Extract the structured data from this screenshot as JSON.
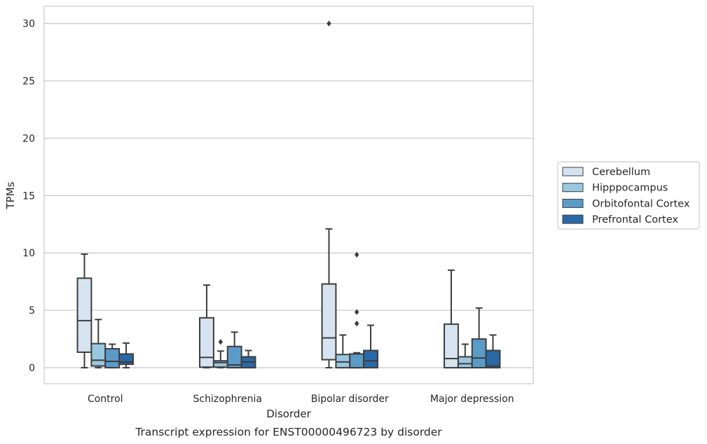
{
  "chart_data": {
    "type": "box",
    "title": "",
    "caption": "Transcript expression for ENST00000496723 by disorder",
    "xlabel": "Disorder",
    "ylabel": "TPMs",
    "ylim": [
      -1.4,
      31.5
    ],
    "yticks": [
      0,
      5,
      10,
      15,
      20,
      25,
      30
    ],
    "grid": "horizontal",
    "legend_position": "right-center",
    "categories": [
      "Control",
      "Schizophrenia",
      "Bipolar disorder",
      "Major depression"
    ],
    "series": [
      {
        "name": "Cerebellum",
        "color": "#d6e3f1",
        "boxes": [
          {
            "whisker_low": 0.0,
            "q1": 1.35,
            "median": 4.1,
            "q3": 7.8,
            "whisker_high": 9.9,
            "outliers": []
          },
          {
            "whisker_low": 0.0,
            "q1": 0.05,
            "median": 0.9,
            "q3": 4.35,
            "whisker_high": 7.2,
            "outliers": []
          },
          {
            "whisker_low": 0.0,
            "q1": 0.7,
            "median": 2.6,
            "q3": 7.3,
            "whisker_high": 12.1,
            "outliers": [
              30.0
            ]
          },
          {
            "whisker_low": 0.0,
            "q1": 0.0,
            "median": 0.8,
            "q3": 3.8,
            "whisker_high": 8.5,
            "outliers": []
          }
        ]
      },
      {
        "name": "Hipppocampus",
        "color": "#9ac7e0",
        "boxes": [
          {
            "whisker_low": 0.0,
            "q1": 0.15,
            "median": 0.65,
            "q3": 2.1,
            "whisker_high": 4.2,
            "outliers": []
          },
          {
            "whisker_low": 0.0,
            "q1": 0.05,
            "median": 0.45,
            "q3": 0.6,
            "whisker_high": 1.45,
            "outliers": [
              2.25
            ]
          },
          {
            "whisker_low": 0.0,
            "q1": 0.0,
            "median": 0.5,
            "q3": 1.15,
            "whisker_high": 2.85,
            "outliers": []
          },
          {
            "whisker_low": 0.0,
            "q1": 0.0,
            "median": 0.35,
            "q3": 0.95,
            "whisker_high": 2.05,
            "outliers": []
          }
        ]
      },
      {
        "name": "Orbitofontal Cortex",
        "color": "#5b9bc8",
        "boxes": [
          {
            "whisker_low": 0.0,
            "q1": 0.0,
            "median": 0.55,
            "q3": 1.65,
            "whisker_high": 2.05,
            "outliers": []
          },
          {
            "whisker_low": 0.0,
            "q1": 0.0,
            "median": 0.25,
            "q3": 1.85,
            "whisker_high": 3.1,
            "outliers": []
          },
          {
            "whisker_low": 0.0,
            "q1": 0.0,
            "median": 0.0,
            "q3": 1.2,
            "whisker_high": 1.3,
            "outliers": [
              3.85,
              4.85,
              9.85
            ]
          },
          {
            "whisker_low": 0.0,
            "q1": 0.0,
            "median": 0.85,
            "q3": 2.5,
            "whisker_high": 5.2,
            "outliers": []
          }
        ]
      },
      {
        "name": "Prefrontal Cortex",
        "color": "#2a69a8",
        "boxes": [
          {
            "whisker_low": 0.0,
            "q1": 0.3,
            "median": 0.5,
            "q3": 1.2,
            "whisker_high": 2.15,
            "outliers": []
          },
          {
            "whisker_low": 0.0,
            "q1": 0.0,
            "median": 0.5,
            "q3": 0.95,
            "whisker_high": 1.5,
            "outliers": []
          },
          {
            "whisker_low": 0.0,
            "q1": 0.0,
            "median": 0.6,
            "q3": 1.5,
            "whisker_high": 3.7,
            "outliers": []
          },
          {
            "whisker_low": 0.0,
            "q1": 0.0,
            "median": 0.15,
            "q3": 1.5,
            "whisker_high": 2.85,
            "outliers": []
          }
        ]
      }
    ]
  }
}
